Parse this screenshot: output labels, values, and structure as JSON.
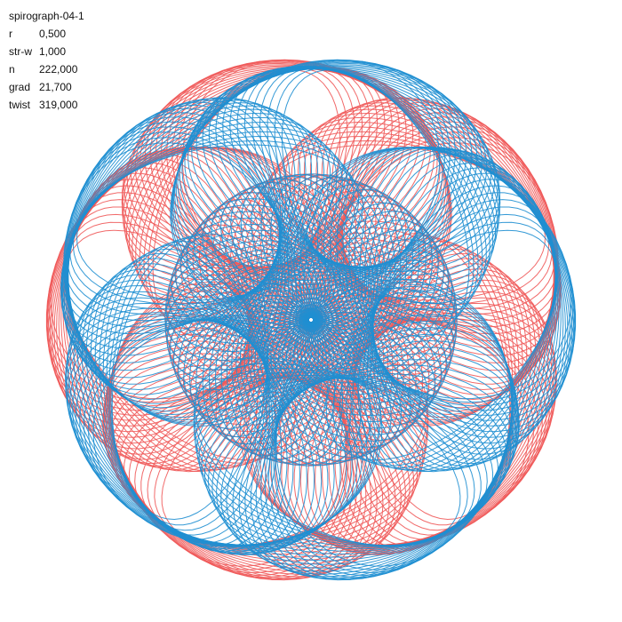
{
  "sketch": {
    "title": "spirograph-04-1",
    "params": [
      {
        "name": "r",
        "value": "0,500"
      },
      {
        "name": "str-w",
        "value": "1,000"
      },
      {
        "name": "n",
        "value": "222,000"
      },
      {
        "name": "grad",
        "value": "21,700"
      },
      {
        "name": "twist",
        "value": "319,000"
      }
    ]
  },
  "colors": {
    "background": "#ffffff",
    "red": "#f05a5a",
    "blue": "#1f8fd2",
    "text": "#111111"
  },
  "pattern": {
    "lobes": 5,
    "layers": [
      "red",
      "blue"
    ]
  }
}
